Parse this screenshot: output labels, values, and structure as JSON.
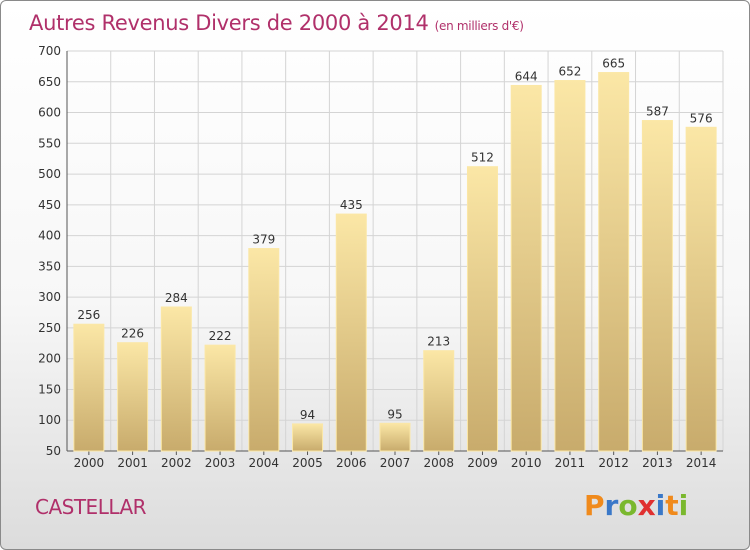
{
  "title": "Autres Revenus Divers de 2000 à 2014",
  "title_unit": "(en milliers d'€)",
  "commune": "CASTELLAR",
  "logo": {
    "letters": [
      "P",
      "r",
      "o",
      "x",
      "i",
      "t",
      "i"
    ],
    "colors": [
      "#f08a1c",
      "#3a78c8",
      "#7ab82e",
      "#e03030",
      "#3a78c8",
      "#f08a1c",
      "#7ab82e"
    ]
  },
  "colors": {
    "bar_light": "#fbe7a6",
    "bar_dark": "#cdb071",
    "bar_edge": "#fbe7a6",
    "title": "#b0306a"
  },
  "chart_data": {
    "type": "bar",
    "title": "Autres Revenus Divers de 2000 à 2014",
    "xlabel": "",
    "ylabel": "",
    "categories": [
      "2000",
      "2001",
      "2002",
      "2003",
      "2004",
      "2005",
      "2006",
      "2007",
      "2008",
      "2009",
      "2010",
      "2011",
      "2012",
      "2013",
      "2014"
    ],
    "values": [
      256,
      226,
      284,
      222,
      379,
      94,
      435,
      95,
      213,
      512,
      644,
      652,
      665,
      587,
      576
    ],
    "ylim": [
      50,
      700
    ],
    "yticks": [
      50,
      100,
      150,
      200,
      250,
      300,
      350,
      400,
      450,
      500,
      550,
      600,
      650,
      700
    ],
    "grid": true
  }
}
